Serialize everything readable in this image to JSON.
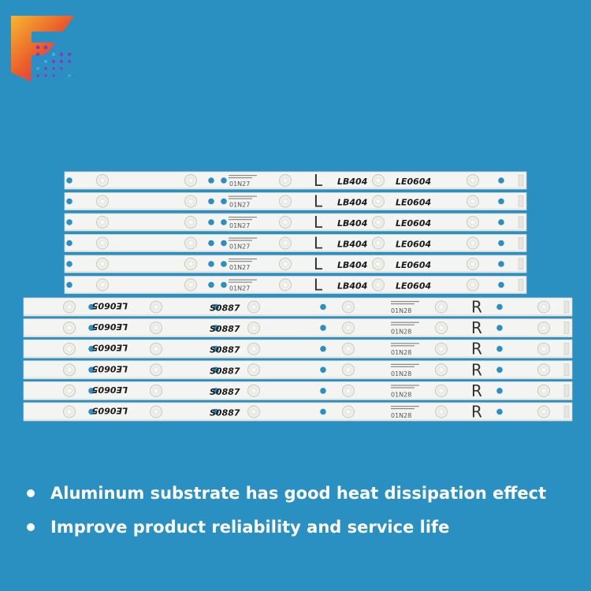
{
  "brand": {
    "logo_icon": "stylized-f-logo",
    "colors": [
      "#f5a623",
      "#e8542c",
      "#c71c7c",
      "#9b2fb6",
      "#ffffff"
    ]
  },
  "strips": {
    "upper": {
      "count": 6,
      "label_letter": "L",
      "code": "01N27",
      "handwritten_a": "LB404",
      "handwritten_b": "LE0604"
    },
    "lower": {
      "count": 6,
      "label_letter": "R",
      "code": "01N28",
      "handwritten_a": "LE0605",
      "handwritten_b": "S0887"
    }
  },
  "features": [
    {
      "text": "Aluminum substrate has good heat dissipation effect"
    },
    {
      "text": "Improve product reliability and service life"
    }
  ],
  "background_color": "#2a8fc1"
}
